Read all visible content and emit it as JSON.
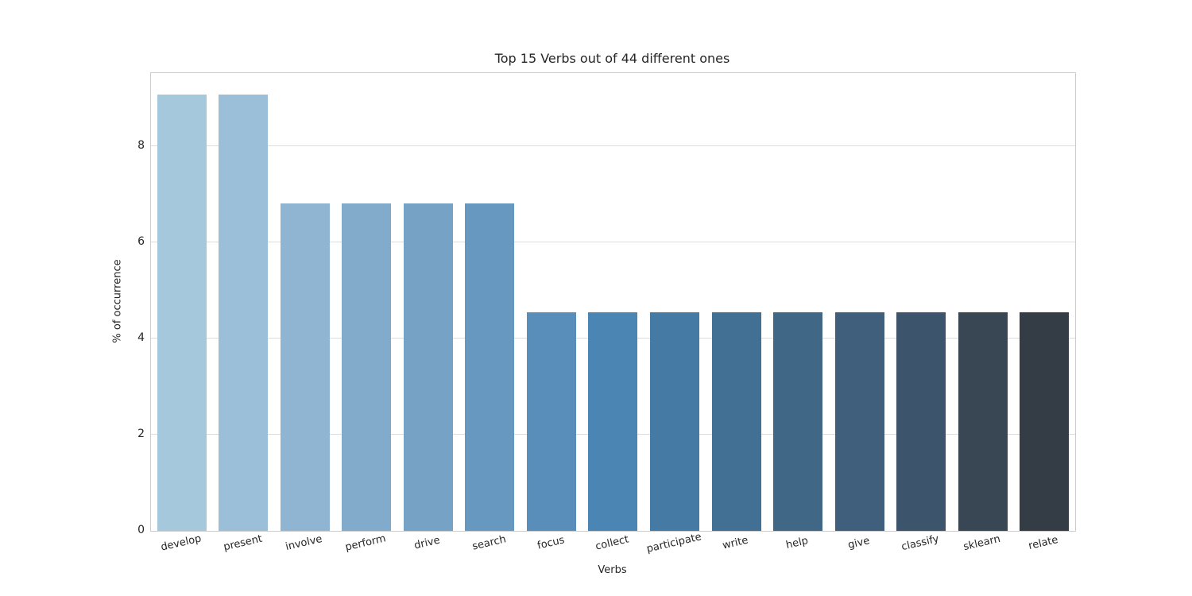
{
  "chart_data": {
    "type": "bar",
    "title": "Top 15 Verbs out of 44 different ones",
    "xlabel": "Verbs",
    "ylabel": "% of occurrence",
    "categories": [
      "develop",
      "present",
      "involve",
      "perform",
      "drive",
      "search",
      "focus",
      "collect",
      "participate",
      "write",
      "help",
      "give",
      "classify",
      "sklearn",
      "relate"
    ],
    "values": [
      9.09,
      9.09,
      6.82,
      6.82,
      6.82,
      6.82,
      4.55,
      4.55,
      4.55,
      4.55,
      4.55,
      4.55,
      4.55,
      4.55,
      4.55
    ],
    "bar_colors": [
      "#a5c8dd",
      "#9bbfd8",
      "#8fb5d2",
      "#82abcb",
      "#75a2c5",
      "#6798bf",
      "#588eb9",
      "#4a85b3",
      "#457aa4",
      "#427095",
      "#406886",
      "#405f7c",
      "#3d556c",
      "#394755",
      "#343c45"
    ],
    "yticks": [
      0,
      2,
      4,
      6,
      8
    ],
    "ylim": [
      0,
      9.53
    ],
    "grid": true,
    "legend": "none",
    "colors": {
      "background": "#ffffff",
      "grid": "#dcdcdc",
      "spine": "#cccccc",
      "text": "#262626"
    }
  }
}
